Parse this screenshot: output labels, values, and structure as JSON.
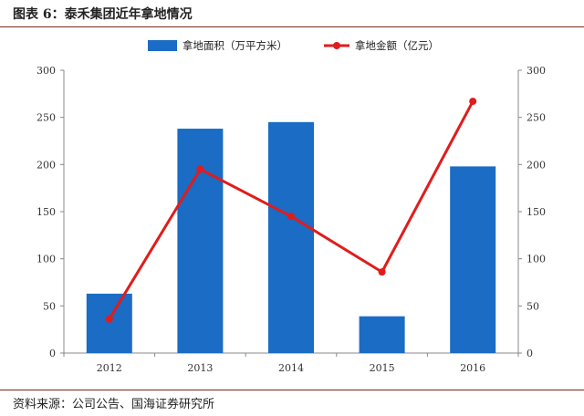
{
  "header": {
    "title": "图表 6：泰禾集团近年拿地情况"
  },
  "footer": {
    "source": "资料来源：公司公告、国海证券研究所"
  },
  "colors": {
    "bar": "#1a6cc4",
    "line": "#e01c1c",
    "rule": "#7a2a1a"
  },
  "chart_data": {
    "type": "bar",
    "categories": [
      "2012",
      "2013",
      "2014",
      "2015",
      "2016"
    ],
    "series": [
      {
        "name": "拿地面积（万平方米）",
        "kind": "bar",
        "axis": "left",
        "values": [
          63,
          238,
          245,
          39,
          198
        ]
      },
      {
        "name": "拿地金额（亿元）",
        "kind": "line",
        "axis": "right",
        "values": [
          36,
          195,
          145,
          86,
          267
        ]
      }
    ],
    "ylim": [
      0,
      300
    ],
    "y2lim": [
      0,
      300
    ],
    "yticks": [
      0,
      50,
      100,
      150,
      200,
      250,
      300
    ],
    "legend_position": "top-center",
    "grid": false
  }
}
